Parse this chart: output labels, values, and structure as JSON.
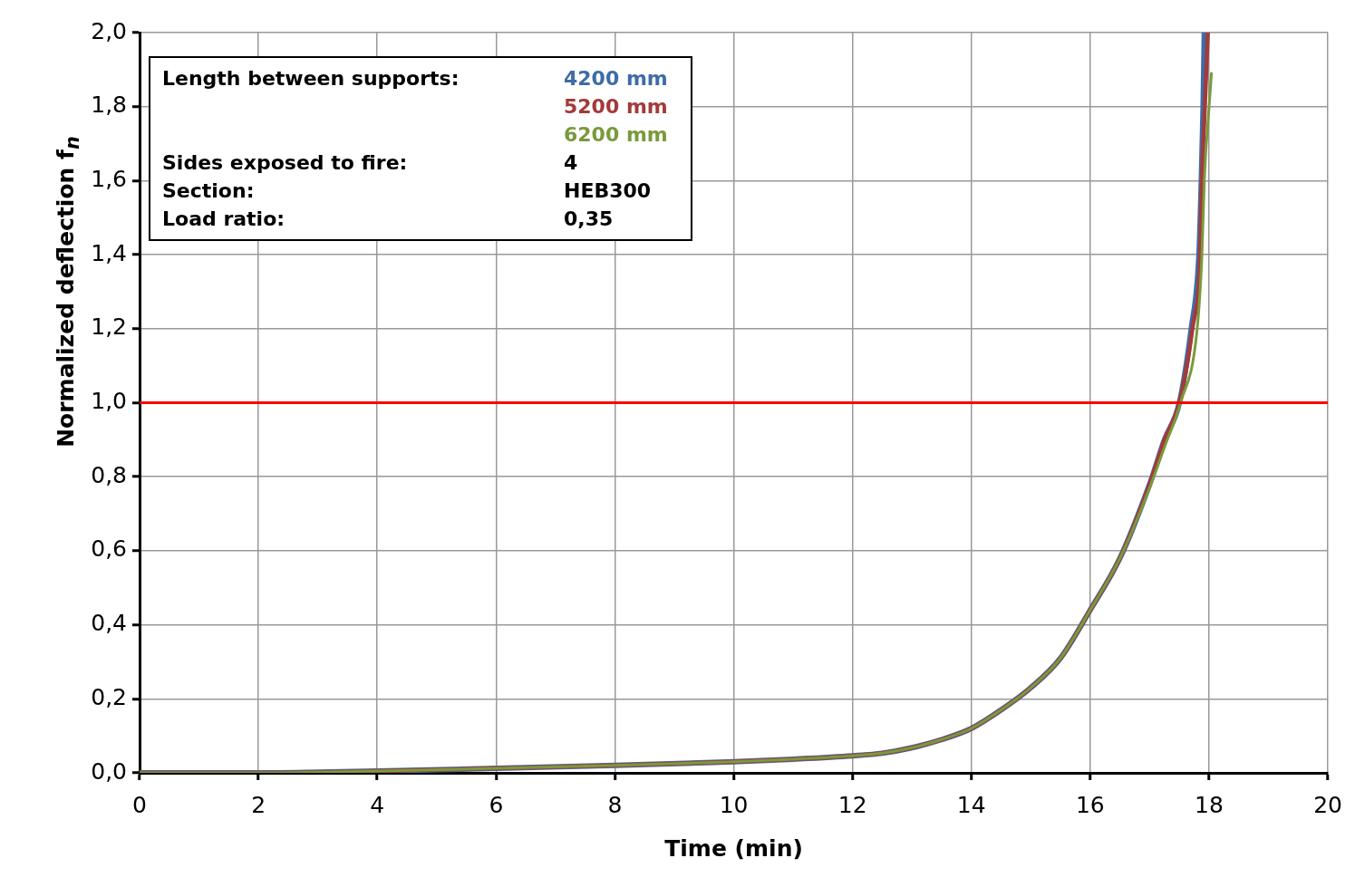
{
  "chart_data": {
    "type": "line",
    "xlabel": "Time (min)",
    "ylabel": "Normalized deflection f$_{n}$",
    "legend_title": "Length between supports:",
    "legend": "top left",
    "grid": true,
    "marker": "none",
    "line_style": "solid",
    "xlim": [
      0,
      20
    ],
    "xticks": [
      0,
      2,
      4,
      6,
      8,
      10,
      12,
      14,
      16,
      18,
      20
    ],
    "ylim": [
      0,
      2
    ],
    "yticks": [
      {
        "value": 0,
        "label": "0,0"
      },
      {
        "value": 0.2,
        "label": "0,2"
      },
      {
        "value": 0.4,
        "label": "0,4"
      },
      {
        "value": 0.6,
        "label": "0,6"
      },
      {
        "value": 0.8,
        "label": "0,8"
      },
      {
        "value": 1,
        "label": "1,0"
      },
      {
        "value": 1.2,
        "label": "1,2"
      },
      {
        "value": 1.4,
        "label": "1,4"
      },
      {
        "value": 1.6,
        "label": "1,6"
      },
      {
        "value": 1.8,
        "label": "1,8"
      },
      {
        "value": 2,
        "label": "2,0"
      }
    ],
    "ref_lines": [
      {
        "axis": "y",
        "value": 1,
        "color": "#ff0000"
      }
    ],
    "annotations": [
      "Sides exposed to fire:",
      "4",
      "Section:",
      "HEB300",
      "Load ratio:",
      "0,35"
    ],
    "series": [
      {
        "name": "4200 mm",
        "color": "#3f6ca8",
        "x": [
          0,
          2,
          3,
          4,
          6,
          8,
          10,
          11,
          12,
          12.5,
          13,
          13.5,
          14,
          14.5,
          15,
          15.5,
          16,
          16.5,
          17,
          17.25,
          17.5,
          17.7,
          17.83,
          17.87,
          17.9,
          17.92
        ],
        "values": [
          0,
          0,
          0.002,
          0.005,
          0.012,
          0.02,
          0.03,
          0.037,
          0.046,
          0.053,
          0.068,
          0.09,
          0.12,
          0.17,
          0.23,
          0.31,
          0.44,
          0.58,
          0.78,
          0.9,
          1.0,
          1.2,
          1.4,
          1.6,
          1.8,
          2.0
        ]
      },
      {
        "name": "5200 mm",
        "color": "#a33a3a",
        "x": [
          0,
          2,
          3,
          4,
          6,
          8,
          10,
          11,
          12,
          12.5,
          13,
          13.5,
          14,
          14.5,
          15,
          15.5,
          16,
          16.5,
          17,
          17.25,
          17.5,
          17.72,
          17.85,
          17.88,
          17.93,
          17.98
        ],
        "values": [
          0,
          0,
          0.002,
          0.005,
          0.012,
          0.02,
          0.03,
          0.037,
          0.046,
          0.053,
          0.068,
          0.09,
          0.12,
          0.17,
          0.23,
          0.31,
          0.44,
          0.58,
          0.78,
          0.9,
          1.0,
          1.2,
          1.4,
          1.6,
          1.8,
          2.0
        ]
      },
      {
        "name": "6200 mm",
        "color": "#7a9a3c",
        "x": [
          0,
          2,
          3,
          4,
          6,
          8,
          10,
          11,
          12,
          12.5,
          13,
          13.5,
          14,
          14.5,
          15,
          15.5,
          16,
          16.5,
          17,
          17.25,
          17.52,
          17.8,
          17.88,
          17.92,
          18.0,
          18.04
        ],
        "values": [
          0,
          0,
          0.002,
          0.005,
          0.012,
          0.02,
          0.03,
          0.037,
          0.046,
          0.053,
          0.068,
          0.09,
          0.12,
          0.17,
          0.23,
          0.31,
          0.44,
          0.58,
          0.77,
          0.88,
          1.0,
          1.2,
          1.4,
          1.6,
          1.8,
          1.89
        ]
      }
    ]
  }
}
